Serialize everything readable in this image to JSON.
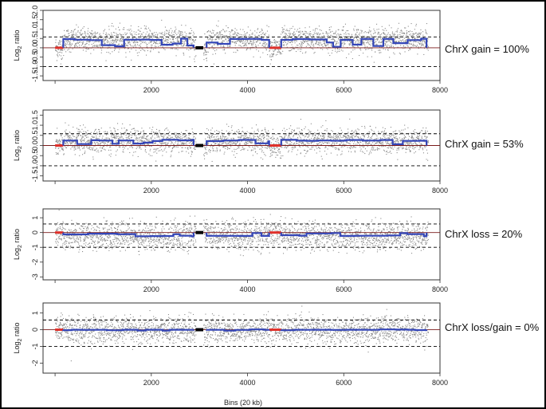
{
  "colors": {
    "dots": "#8a8a8a",
    "segments": "#3446b8",
    "normal": "#e0302a",
    "baseline": "#7a1a1a",
    "gap": "#000000",
    "threshold": "#000000"
  },
  "x_axis_title": "Bins (20 kb)",
  "chart_data": [
    {
      "type": "scatter",
      "label": "ChrX gain = 100%",
      "ylabel_main": "Log",
      "ylabel_sub": "2",
      "ylabel_rest": " ratio",
      "xlim": [
        -250,
        8000
      ],
      "ylim": [
        -1.75,
        2.0
      ],
      "xticks": [
        2000,
        4000,
        6000,
        8000
      ],
      "yticks": [
        -1.5,
        -1.0,
        -0.5,
        0.0,
        0.5,
        1.0,
        1.5,
        2.0
      ],
      "ytick_labels": [
        "-1.5",
        "-1.0",
        "-0.5",
        "0.0",
        "0.5",
        "1.0",
        "1.5",
        "2.0"
      ],
      "dashed_lines": [
        0.58,
        -1.0
      ],
      "segment_level": 0.45,
      "noise": 0.32,
      "gap": [
        2920,
        3080
      ],
      "segment_starts": [
        170,
        3150,
        4700
      ],
      "segment_ends": [
        2880,
        4450,
        7720
      ]
    },
    {
      "type": "scatter",
      "label": "ChrX gain = 53%",
      "ylabel_main": "Log",
      "ylabel_sub": "2",
      "ylabel_rest": " ratio",
      "xlim": [
        -250,
        8000
      ],
      "ylim": [
        -1.75,
        1.75
      ],
      "xticks": [
        2000,
        4000,
        6000,
        8000
      ],
      "yticks": [
        -1.5,
        -1.0,
        -0.5,
        0.0,
        0.5,
        1.0,
        1.5
      ],
      "ytick_labels": [
        "-1.5",
        "-1.0",
        "-0.5",
        "0.0",
        "0.5",
        "1.0",
        "1.5"
      ],
      "dashed_lines": [
        0.58,
        -1.0
      ],
      "segment_level": 0.25,
      "noise": 0.3,
      "gap": [
        2920,
        3080
      ],
      "segment_starts": [
        170,
        3150,
        4700
      ],
      "segment_ends": [
        2880,
        4450,
        7720
      ]
    },
    {
      "type": "scatter",
      "label": "ChrX loss = 20%",
      "ylabel_main": "Log",
      "ylabel_sub": "2",
      "ylabel_rest": " ratio",
      "xlim": [
        -250,
        8000
      ],
      "ylim": [
        -3.2,
        1.6
      ],
      "xticks": [
        2000,
        4000,
        6000,
        8000
      ],
      "yticks": [
        -3,
        -2,
        -1,
        0,
        1
      ],
      "ytick_labels": [
        "-3",
        "-2",
        "-1",
        "0",
        "1"
      ],
      "dashed_lines": [
        0.58,
        -1.0
      ],
      "segment_level": -0.22,
      "noise": 0.45,
      "gap": [
        2920,
        3080
      ],
      "segment_starts": [
        170,
        3150,
        4700
      ],
      "segment_ends": [
        2880,
        4450,
        7720
      ]
    },
    {
      "type": "scatter",
      "label": "ChrX loss/gain = 0%",
      "ylabel_main": "Log",
      "ylabel_sub": "2",
      "ylabel_rest": " ratio",
      "xlim": [
        -250,
        8000
      ],
      "ylim": [
        -2.6,
        1.6
      ],
      "xticks": [
        2000,
        4000,
        6000,
        8000
      ],
      "yticks": [
        -2,
        -1,
        0,
        1
      ],
      "ytick_labels": [
        "-2",
        "-1",
        "0",
        "1"
      ],
      "dashed_lines": [
        0.58,
        -1.0
      ],
      "segment_level": -0.02,
      "noise": 0.38,
      "gap": [
        2920,
        3080
      ],
      "segment_starts": [
        170,
        3150,
        4700
      ],
      "segment_ends": [
        2880,
        4450,
        7720
      ]
    }
  ]
}
